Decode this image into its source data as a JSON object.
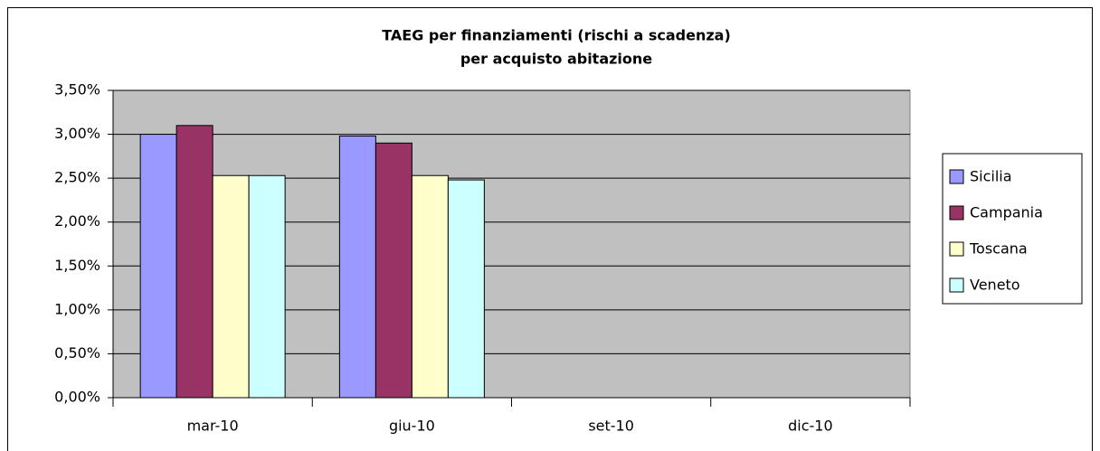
{
  "chart_data": {
    "type": "bar",
    "title": "TAEG per finanziamenti (rischi a scadenza)",
    "subtitle": "per acquisto abitazione",
    "categories": [
      "mar-10",
      "giu-10",
      "set-10",
      "dic-10"
    ],
    "series": [
      {
        "name": "Sicilia",
        "color": "#9999ff",
        "values": [
          3.0,
          2.98,
          null,
          null
        ]
      },
      {
        "name": "Campania",
        "color": "#993366",
        "values": [
          3.1,
          2.9,
          null,
          null
        ]
      },
      {
        "name": "Toscana",
        "color": "#ffffcc",
        "values": [
          2.53,
          2.53,
          null,
          null
        ]
      },
      {
        "name": "Veneto",
        "color": "#ccffff",
        "values": [
          2.53,
          2.48,
          null,
          null
        ]
      }
    ],
    "ylim": [
      0,
      3.5
    ],
    "yticks": [
      {
        "value": 0,
        "label": "0,00%"
      },
      {
        "value": 0.5,
        "label": "0,50%"
      },
      {
        "value": 1,
        "label": "1,00%"
      },
      {
        "value": 1.5,
        "label": "1,50%"
      },
      {
        "value": 2,
        "label": "2,00%"
      },
      {
        "value": 2.5,
        "label": "2,50%"
      },
      {
        "value": 3,
        "label": "3,00%"
      },
      {
        "value": 3.5,
        "label": "3,50%"
      }
    ],
    "grid": true,
    "legend": "right",
    "plot_background": "#c0c0c0"
  }
}
